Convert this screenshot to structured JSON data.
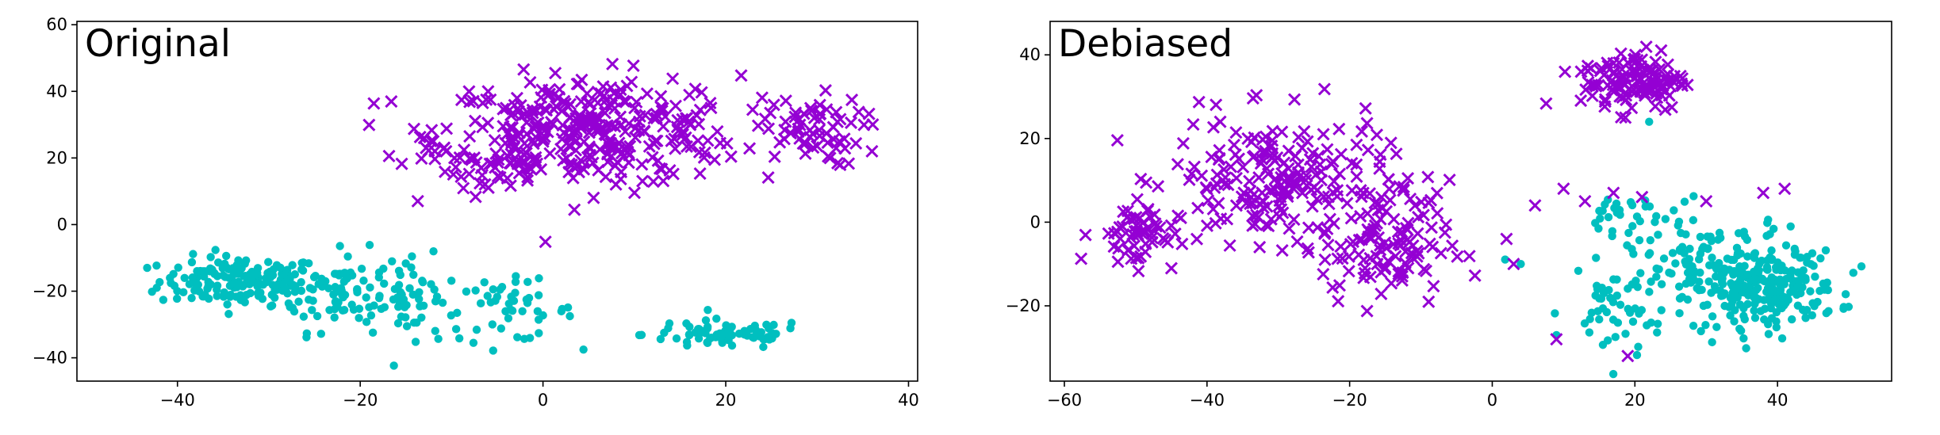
{
  "chart_data": [
    {
      "type": "scatter",
      "title": "Original",
      "xlabel": "",
      "ylabel": "",
      "xlim": [
        -51,
        41
      ],
      "ylim": [
        -47,
        61
      ],
      "xticks": [
        -40,
        -20,
        0,
        20,
        40
      ],
      "yticks": [
        -40,
        -20,
        0,
        20,
        40,
        60
      ],
      "grid": false,
      "legend": "none",
      "series": [
        {
          "marker": "circle",
          "color": "#00bfbf",
          "clusters": [
            {
              "center": [
                -33,
                -17
              ],
              "spread": [
                6,
                5
              ],
              "count": 160
            },
            {
              "center": [
                -22,
                -20
              ],
              "spread": [
                5,
                8
              ],
              "count": 90
            },
            {
              "center": [
                -14,
                -22
              ],
              "spread": [
                3,
                8
              ],
              "count": 35
            },
            {
              "center": [
                -4,
                -26
              ],
              "spread": [
                5,
                6
              ],
              "count": 50
            },
            {
              "center": [
                20,
                -33
              ],
              "spread": [
                6,
                3
              ],
              "count": 75
            }
          ]
        },
        {
          "marker": "x",
          "color": "#9400d3",
          "clusters": [
            {
              "center": [
                5,
                28
              ],
              "spread": [
                11,
                11
              ],
              "count": 330
            },
            {
              "center": [
                29,
                28
              ],
              "spread": [
                4,
                7
              ],
              "count": 60
            },
            {
              "center": [
                -6,
                20
              ],
              "spread": [
                4,
                7
              ],
              "count": 40
            }
          ],
          "points": [
            [
              -13,
              26
            ],
            [
              -12,
              25
            ],
            [
              36,
              22
            ]
          ]
        }
      ]
    },
    {
      "type": "scatter",
      "title": "Debiased",
      "xlabel": "",
      "ylabel": "",
      "xlim": [
        -62,
        56
      ],
      "ylim": [
        -38,
        48
      ],
      "xticks": [
        -60,
        -40,
        -20,
        0,
        20,
        40
      ],
      "yticks": [
        -20,
        0,
        20,
        40
      ],
      "grid": false,
      "legend": "none",
      "series": [
        {
          "marker": "circle",
          "color": "#00bfbf",
          "clusters": [
            {
              "center": [
                38,
                -16
              ],
              "spread": [
                7,
                6
              ],
              "count": 220
            },
            {
              "center": [
                30,
                -10
              ],
              "spread": [
                10,
                9
              ],
              "count": 130
            },
            {
              "center": [
                17,
                -22
              ],
              "spread": [
                3,
                8
              ],
              "count": 40
            },
            {
              "center": [
                18,
                3
              ],
              "spread": [
                4,
                3
              ],
              "count": 20
            }
          ],
          "points": [
            [
              22,
              24
            ],
            [
              4,
              -10
            ],
            [
              9,
              -27
            ]
          ]
        },
        {
          "marker": "x",
          "color": "#9400d3",
          "clusters": [
            {
              "center": [
                -30,
                10
              ],
              "spread": [
                10,
                10
              ],
              "count": 200
            },
            {
              "center": [
                -50,
                -3
              ],
              "spread": [
                4,
                5
              ],
              "count": 60
            },
            {
              "center": [
                -15,
                -5
              ],
              "spread": [
                6,
                10
              ],
              "count": 120
            },
            {
              "center": [
                20,
                34
              ],
              "spread": [
                5,
                5
              ],
              "count": 120
            }
          ],
          "points": [
            [
              6,
              4
            ],
            [
              10,
              8
            ],
            [
              13,
              5
            ],
            [
              17,
              7
            ],
            [
              21,
              6
            ],
            [
              30,
              5
            ],
            [
              38,
              7
            ],
            [
              41,
              8
            ],
            [
              9,
              -28
            ],
            [
              19,
              -32
            ],
            [
              2,
              -4
            ],
            [
              3,
              -10
            ]
          ]
        }
      ]
    }
  ]
}
